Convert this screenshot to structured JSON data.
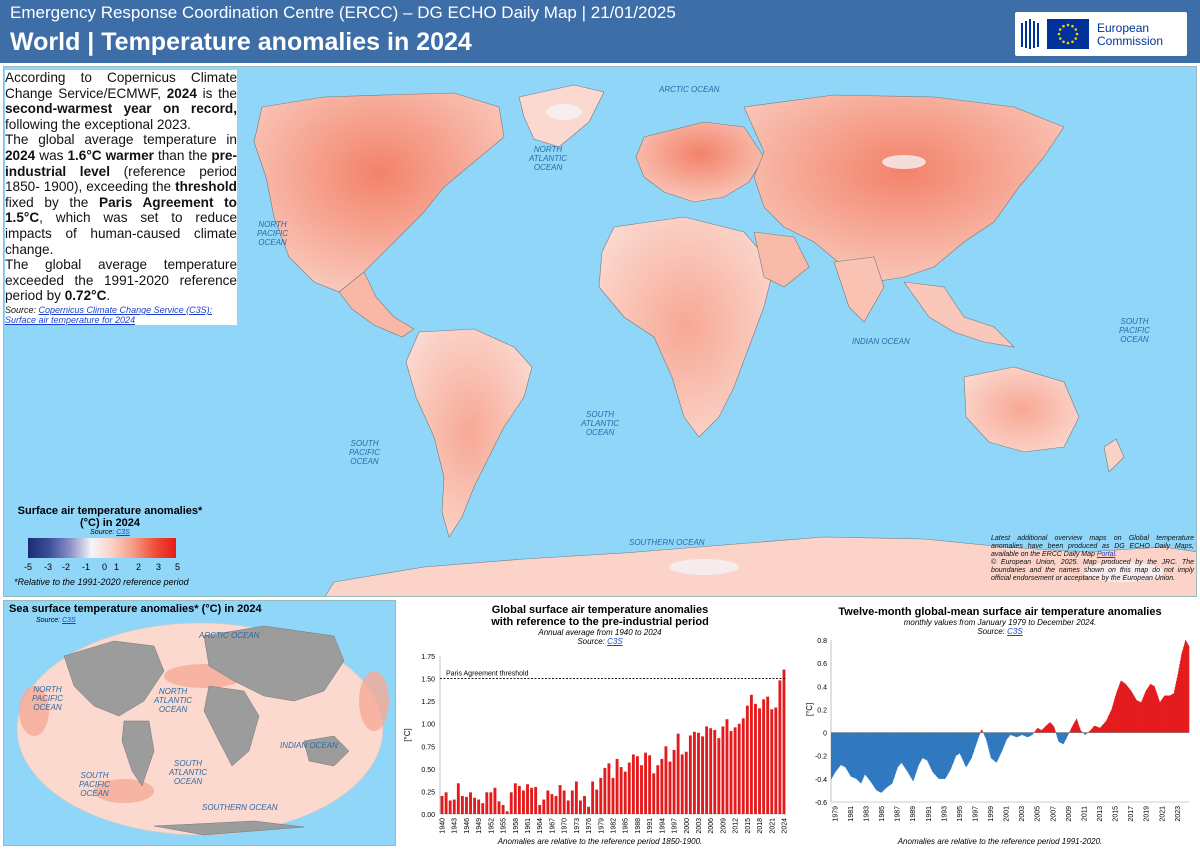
{
  "header": {
    "line1": "Emergency Response Coordination Centre (ERCC) – DG ECHO Daily Map | 21/01/2025",
    "line2": "World | Temperature anomalies in 2024",
    "logo_text": [
      "European",
      "Commission"
    ]
  },
  "info": {
    "p1_a": "According to Copernicus Climate Change Service/ECMWF, ",
    "p1_b": "2024",
    "p1_c": " is the ",
    "p1_d": "second-warmest year on record,",
    "p1_e": " following the exceptional 2023.",
    "p2_a": "The global average temperature in ",
    "p2_b": "2024",
    "p2_c": " was ",
    "p2_d": "1.6°C warmer",
    "p2_e": " than the ",
    "p2_f": "pre-industrial level",
    "p2_g": " (reference period 1850- 1900), exceeding the ",
    "p2_h": "threshold",
    "p2_i": " fixed by the ",
    "p2_j": "Paris Agreement to 1.5°C",
    "p2_k": ", which was set to reduce impacts of human-caused climate change.",
    "p3_a": "The global average temperature exceeded the 1991-2020 reference period by ",
    "p3_b": "0.72°C",
    "p3_c": ".",
    "src_label": "Source: ",
    "src_link": "Copernicus Climate Change Service (C3S): Surface air temperature for 2024"
  },
  "oceans": {
    "arctic": "ARCTIC OCEAN",
    "n_atlantic": [
      "NORTH",
      "ATLANTIC",
      "OCEAN"
    ],
    "n_pacific": [
      "NORTH",
      "PACIFIC",
      "OCEAN"
    ],
    "indian": "INDIAN OCEAN",
    "s_pacific_r": [
      "SOUTH",
      "PACIFIC",
      "OCEAN"
    ],
    "s_atlantic": [
      "SOUTH",
      "ATLANTIC",
      "OCEAN"
    ],
    "s_pacific_l": [
      "SOUTH",
      "PACIFIC",
      "OCEAN"
    ],
    "southern": "SOUTHERN OCEAN"
  },
  "legend": {
    "title": "Surface air temperature anomalies* (°C) in 2024",
    "source_label": "Source: ",
    "source_link": "C3S",
    "ticks": [
      "-5",
      "-3",
      "-2",
      "-1",
      "0",
      "1",
      "2",
      "3",
      "5"
    ],
    "note": "*Relative to the 1991-2020 reference period",
    "colors": [
      "#1f2a72",
      "#3a4f9a",
      "#8e8fc6",
      "#f4f4f8",
      "#fad0c4",
      "#f59a84",
      "#f04e3a",
      "#e51c1c"
    ]
  },
  "credits": {
    "text1": "Latest additional overview maps on Global temperature anomalies have been produced as DG ECHO Daily Maps, available on the ERCC Daily Map ",
    "link": "Portal",
    "text1_end": ".",
    "text2": "© European Union, 2025. Map produced by the JRC. The boundaries and the names shown on this map do not imply official endorsement or acceptance by the European Union."
  },
  "sea_panel": {
    "title": "Sea surface temperature anomalies* (°C) in 2024",
    "source_label": "Source: ",
    "source_link": "C3S",
    "oceans": {
      "arctic": "ARCTIC OCEAN",
      "n_pacific": [
        "NORTH",
        "PACIFIC",
        "OCEAN"
      ],
      "n_atlantic": [
        "NORTH",
        "ATLANTIC",
        "OCEAN"
      ],
      "indian": "INDIAN OCEAN",
      "s_pacific": [
        "SOUTH",
        "PACIFIC",
        "OCEAN"
      ],
      "s_atlantic": [
        "SOUTH",
        "ATLANTIC",
        "OCEAN"
      ],
      "southern": "SOUTHERN OCEAN"
    }
  },
  "chart1_text": {
    "title1": "Global surface air temperature anomalies",
    "title2": "with reference to the pre-industrial period",
    "subtitle": "Annual average from 1940 to 2024",
    "source_label": "Source: ",
    "source_link": "C3S",
    "threshold_label": "Paris Agreement threshold",
    "ylabel": "[°C]",
    "footer": "Anomalies are relative to the reference period 1850-1900."
  },
  "chart2_text": {
    "title": "Twelve-month global-mean surface air temperature anomalies",
    "subtitle": "monthly values from January 1979 to December 2024.",
    "source_label": "Source: ",
    "source_link": "C3S",
    "ylabel": "[°C]",
    "footer": "Anomalies are relative to the reference period 1991-2020."
  },
  "chart_data": [
    {
      "type": "bar",
      "title": "Global surface air temperature anomalies with reference to the pre-industrial period",
      "ylabel": "[°C]",
      "ylim": [
        0,
        1.75
      ],
      "yticks": [
        "0.00",
        "0.25",
        "0.50",
        "0.75",
        "1.00",
        "1.25",
        "1.50",
        "1.75"
      ],
      "threshold": 1.5,
      "color": "#e41a1c",
      "x": [
        1940,
        1941,
        1942,
        1943,
        1944,
        1945,
        1946,
        1947,
        1948,
        1949,
        1950,
        1951,
        1952,
        1953,
        1954,
        1955,
        1956,
        1957,
        1958,
        1959,
        1960,
        1961,
        1962,
        1963,
        1964,
        1965,
        1966,
        1967,
        1968,
        1969,
        1970,
        1971,
        1972,
        1973,
        1974,
        1975,
        1976,
        1977,
        1978,
        1979,
        1980,
        1981,
        1982,
        1983,
        1984,
        1985,
        1986,
        1987,
        1988,
        1989,
        1990,
        1991,
        1992,
        1993,
        1994,
        1995,
        1996,
        1997,
        1998,
        1999,
        2000,
        2001,
        2002,
        2003,
        2004,
        2005,
        2006,
        2007,
        2008,
        2009,
        2010,
        2011,
        2012,
        2013,
        2014,
        2015,
        2016,
        2017,
        2018,
        2019,
        2020,
        2021,
        2022,
        2023,
        2024
      ],
      "xticks": [
        "1940",
        "1943",
        "1946",
        "1949",
        "1952",
        "1955",
        "1958",
        "1961",
        "1964",
        "1967",
        "1970",
        "1973",
        "1976",
        "1979",
        "1982",
        "1985",
        "1988",
        "1991",
        "1994",
        "1997",
        "2000",
        "2003",
        "2006",
        "2009",
        "2012",
        "2015",
        "2018",
        "2021",
        "2024"
      ],
      "values": [
        0.2,
        0.24,
        0.15,
        0.16,
        0.34,
        0.2,
        0.19,
        0.24,
        0.18,
        0.16,
        0.12,
        0.24,
        0.24,
        0.29,
        0.14,
        0.1,
        0.03,
        0.24,
        0.34,
        0.31,
        0.26,
        0.33,
        0.29,
        0.3,
        0.1,
        0.16,
        0.26,
        0.22,
        0.2,
        0.32,
        0.26,
        0.15,
        0.26,
        0.36,
        0.15,
        0.2,
        0.08,
        0.36,
        0.27,
        0.4,
        0.51,
        0.56,
        0.4,
        0.61,
        0.52,
        0.47,
        0.57,
        0.66,
        0.64,
        0.54,
        0.68,
        0.65,
        0.45,
        0.54,
        0.61,
        0.75,
        0.58,
        0.71,
        0.89,
        0.66,
        0.69,
        0.87,
        0.91,
        0.9,
        0.86,
        0.97,
        0.95,
        0.93,
        0.84,
        0.97,
        1.05,
        0.92,
        0.96,
        1.0,
        1.06,
        1.2,
        1.32,
        1.22,
        1.17,
        1.27,
        1.3,
        1.16,
        1.18,
        1.48,
        1.6
      ]
    },
    {
      "type": "area",
      "title": "Twelve-month global-mean surface air temperature anomalies",
      "ylabel": "[°C]",
      "ylim": [
        -0.6,
        0.8
      ],
      "yticks": [
        "-0.6",
        "-0.4",
        "-0.2",
        "0",
        "0.2",
        "0.4",
        "0.6",
        "0.8"
      ],
      "positive_color": "#e41a1c",
      "negative_color": "#2f78c0",
      "xticks": [
        "1979",
        "1981",
        "1983",
        "1985",
        "1987",
        "1989",
        "1991",
        "1993",
        "1995",
        "1997",
        "1999",
        "2001",
        "2003",
        "2005",
        "2007",
        "2009",
        "2011",
        "2013",
        "2015",
        "2017",
        "2019",
        "2021",
        "2023"
      ],
      "x_start": 1979.0,
      "x_end": 2025.0,
      "keyframes": [
        [
          1979.0,
          -0.4
        ],
        [
          1979.5,
          -0.34
        ],
        [
          1980.2,
          -0.28
        ],
        [
          1980.8,
          -0.3
        ],
        [
          1981.5,
          -0.38
        ],
        [
          1982.2,
          -0.4
        ],
        [
          1982.8,
          -0.44
        ],
        [
          1983.3,
          -0.36
        ],
        [
          1984.0,
          -0.42
        ],
        [
          1984.8,
          -0.5
        ],
        [
          1985.4,
          -0.52
        ],
        [
          1986.0,
          -0.48
        ],
        [
          1986.8,
          -0.44
        ],
        [
          1987.5,
          -0.3
        ],
        [
          1988.0,
          -0.26
        ],
        [
          1988.8,
          -0.34
        ],
        [
          1989.5,
          -0.42
        ],
        [
          1990.2,
          -0.28
        ],
        [
          1990.7,
          -0.22
        ],
        [
          1991.3,
          -0.24
        ],
        [
          1992.0,
          -0.34
        ],
        [
          1992.8,
          -0.4
        ],
        [
          1993.6,
          -0.4
        ],
        [
          1994.3,
          -0.32
        ],
        [
          1995.0,
          -0.2
        ],
        [
          1995.5,
          -0.18
        ],
        [
          1996.3,
          -0.3
        ],
        [
          1997.0,
          -0.22
        ],
        [
          1997.8,
          -0.06
        ],
        [
          1998.3,
          0.03
        ],
        [
          1998.9,
          -0.06
        ],
        [
          1999.5,
          -0.22
        ],
        [
          2000.2,
          -0.26
        ],
        [
          2000.9,
          -0.16
        ],
        [
          2001.5,
          -0.06
        ],
        [
          2002.0,
          -0.02
        ],
        [
          2002.8,
          -0.04
        ],
        [
          2003.5,
          -0.02
        ],
        [
          2004.2,
          -0.04
        ],
        [
          2004.8,
          -0.02
        ],
        [
          2005.5,
          0.04
        ],
        [
          2006.0,
          0.02
        ],
        [
          2006.6,
          0.06
        ],
        [
          2007.1,
          0.09
        ],
        [
          2007.6,
          0.05
        ],
        [
          2008.2,
          -0.08
        ],
        [
          2008.8,
          -0.1
        ],
        [
          2009.4,
          -0.02
        ],
        [
          2010.0,
          0.06
        ],
        [
          2010.5,
          0.12
        ],
        [
          2011.0,
          0.02
        ],
        [
          2011.6,
          -0.02
        ],
        [
          2012.3,
          0.02
        ],
        [
          2012.8,
          0.06
        ],
        [
          2013.5,
          0.04
        ],
        [
          2014.3,
          0.1
        ],
        [
          2015.0,
          0.2
        ],
        [
          2015.6,
          0.34
        ],
        [
          2016.2,
          0.45
        ],
        [
          2016.8,
          0.42
        ],
        [
          2017.5,
          0.36
        ],
        [
          2018.2,
          0.28
        ],
        [
          2018.8,
          0.26
        ],
        [
          2019.4,
          0.36
        ],
        [
          2020.0,
          0.42
        ],
        [
          2020.5,
          0.4
        ],
        [
          2021.2,
          0.26
        ],
        [
          2021.8,
          0.32
        ],
        [
          2022.5,
          0.32
        ],
        [
          2023.0,
          0.34
        ],
        [
          2023.5,
          0.5
        ],
        [
          2024.0,
          0.68
        ],
        [
          2024.5,
          0.8
        ],
        [
          2025.0,
          0.74
        ]
      ]
    }
  ]
}
